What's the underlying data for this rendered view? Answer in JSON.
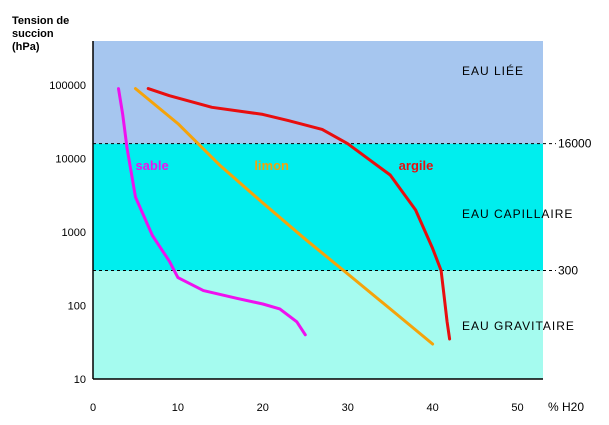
{
  "chart_data": {
    "type": "line",
    "ylabel_lines": [
      "Tension  de",
      "succion",
      "(hPa)"
    ],
    "y_scale": "log",
    "ylim": [
      10,
      400000
    ],
    "y_ticks": [
      {
        "value": 100000,
        "label": "100000"
      },
      {
        "value": 10000,
        "label": "10000"
      },
      {
        "value": 1000,
        "label": "1000"
      },
      {
        "value": 100,
        "label": "100"
      },
      {
        "value": 10,
        "label": "10"
      }
    ],
    "xlim": [
      0,
      53
    ],
    "x_ticks": [
      {
        "value": 0,
        "label": "0"
      },
      {
        "value": 10,
        "label": "10"
      },
      {
        "value": 20,
        "label": "20"
      },
      {
        "value": 30,
        "label": "30"
      },
      {
        "value": 40,
        "label": "40"
      },
      {
        "value": 50,
        "label": "50"
      }
    ],
    "xunit_label": "%  H20",
    "zones": [
      {
        "label": "EAU  LIÉE",
        "from": 16000,
        "to": 400000,
        "color": "#a6c6ef"
      },
      {
        "label": "EAU  CAPILLAIRE",
        "from": 300,
        "to": 16000,
        "color": "#00eeee"
      },
      {
        "label": "EAU  GRAVITAIRE",
        "from": 10,
        "to": 300,
        "color": "#a5fbef"
      }
    ],
    "thresholds": [
      {
        "value": 16000,
        "label": "16000"
      },
      {
        "value": 300,
        "label": "300"
      }
    ],
    "grid": false,
    "series": [
      {
        "name": "sable",
        "color": "#ee11ee",
        "label_at": {
          "x": 5,
          "y": 7000
        },
        "points": [
          [
            3,
            90000
          ],
          [
            3.5,
            40000
          ],
          [
            4,
            14000
          ],
          [
            5,
            3000
          ],
          [
            7,
            900
          ],
          [
            9,
            400
          ],
          [
            10,
            240
          ],
          [
            13,
            160
          ],
          [
            17,
            125
          ],
          [
            20,
            105
          ],
          [
            22,
            90
          ],
          [
            24,
            60
          ],
          [
            25,
            40
          ]
        ]
      },
      {
        "name": "limon",
        "color": "#f5a30a",
        "label_at": {
          "x": 19,
          "y": 7000
        },
        "points": [
          [
            5,
            90000
          ],
          [
            10,
            30000
          ],
          [
            15,
            8000
          ],
          [
            20,
            2500
          ],
          [
            25,
            800
          ],
          [
            30,
            270
          ],
          [
            35,
            90
          ],
          [
            40,
            30
          ]
        ]
      },
      {
        "name": "argile",
        "color": "#e80e0e",
        "label_at": {
          "x": 36,
          "y": 7000
        },
        "points": [
          [
            6.5,
            90000
          ],
          [
            9,
            72000
          ],
          [
            14,
            50000
          ],
          [
            20,
            40000
          ],
          [
            23,
            33000
          ],
          [
            27,
            25000
          ],
          [
            30,
            16000
          ],
          [
            35,
            6000
          ],
          [
            38,
            2000
          ],
          [
            40,
            600
          ],
          [
            41,
            300
          ],
          [
            41.3,
            150
          ],
          [
            41.7,
            60
          ],
          [
            42,
            35
          ]
        ]
      }
    ]
  }
}
